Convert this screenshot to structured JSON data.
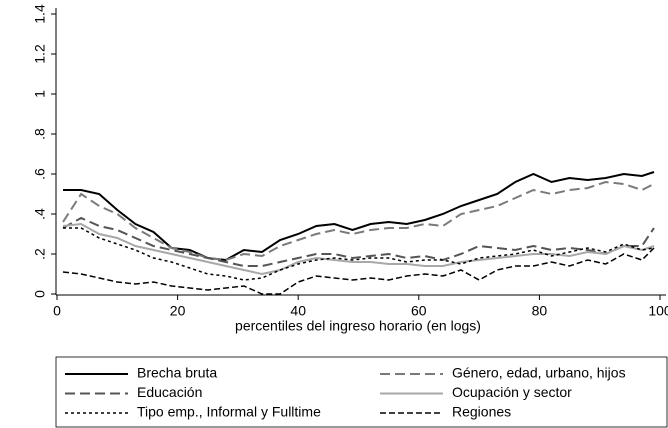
{
  "chart_data": {
    "type": "line",
    "xlabel": "percentiles del ingreso horario (en logs)",
    "x": [
      1,
      4,
      7,
      10,
      13,
      16,
      19,
      22,
      25,
      28,
      31,
      34,
      37,
      40,
      43,
      46,
      49,
      52,
      55,
      58,
      61,
      64,
      67,
      70,
      73,
      76,
      79,
      82,
      85,
      88,
      91,
      94,
      97,
      99
    ],
    "xlim": [
      0,
      100
    ],
    "xticks": [
      0,
      20,
      40,
      60,
      80,
      100
    ],
    "ylim": [
      0,
      1.4
    ],
    "yticks": [
      0,
      {
        "value": 0.2,
        "label": ".2"
      },
      {
        "value": 0.4,
        "label": ".4"
      },
      {
        "value": 0.6,
        "label": ".6"
      },
      {
        "value": 0.8,
        "label": ".8"
      },
      1,
      {
        "value": 1.2,
        "label": "1.2"
      },
      {
        "value": 1.4,
        "label": "1.4"
      }
    ],
    "series": [
      {
        "name": "Brecha bruta",
        "color": "#000000",
        "dash": "none",
        "width": 2,
        "values": [
          0.52,
          0.52,
          0.5,
          0.42,
          0.35,
          0.31,
          0.23,
          0.22,
          0.18,
          0.17,
          0.22,
          0.21,
          0.27,
          0.3,
          0.34,
          0.35,
          0.32,
          0.35,
          0.36,
          0.35,
          0.37,
          0.4,
          0.44,
          0.47,
          0.5,
          0.56,
          0.6,
          0.56,
          0.58,
          0.57,
          0.58,
          0.6,
          0.59,
          0.61
        ]
      },
      {
        "name": "Género, edad, urbano, hijos",
        "color": "#7a7a7a",
        "dash": "10 5",
        "width": 2,
        "values": [
          0.36,
          0.5,
          0.44,
          0.4,
          0.33,
          0.28,
          0.23,
          0.21,
          0.18,
          0.17,
          0.2,
          0.19,
          0.24,
          0.27,
          0.3,
          0.32,
          0.3,
          0.32,
          0.33,
          0.33,
          0.35,
          0.34,
          0.4,
          0.42,
          0.44,
          0.48,
          0.52,
          0.5,
          0.52,
          0.53,
          0.56,
          0.55,
          0.52,
          0.55
        ]
      },
      {
        "name": "Educación",
        "color": "#555555",
        "dash": "10 5",
        "width": 2,
        "values": [
          0.33,
          0.38,
          0.34,
          0.32,
          0.28,
          0.24,
          0.22,
          0.2,
          0.18,
          0.16,
          0.14,
          0.14,
          0.16,
          0.18,
          0.2,
          0.2,
          0.18,
          0.19,
          0.2,
          0.18,
          0.19,
          0.17,
          0.2,
          0.24,
          0.23,
          0.22,
          0.24,
          0.22,
          0.23,
          0.22,
          0.2,
          0.24,
          0.24,
          0.33
        ]
      },
      {
        "name": "Ocupación y sector",
        "color": "#a8a8a8",
        "dash": "none",
        "width": 2,
        "values": [
          0.34,
          0.35,
          0.3,
          0.28,
          0.24,
          0.22,
          0.2,
          0.18,
          0.16,
          0.14,
          0.12,
          0.1,
          0.12,
          0.16,
          0.18,
          0.17,
          0.16,
          0.16,
          0.15,
          0.15,
          0.14,
          0.14,
          0.16,
          0.17,
          0.18,
          0.19,
          0.2,
          0.2,
          0.19,
          0.21,
          0.2,
          0.24,
          0.22,
          0.24
        ]
      },
      {
        "name": "Tipo emp., Informal y Fulltime",
        "color": "#000000",
        "dash": "3 3",
        "width": 1.5,
        "values": [
          0.33,
          0.33,
          0.28,
          0.25,
          0.22,
          0.18,
          0.16,
          0.13,
          0.1,
          0.09,
          0.07,
          0.08,
          0.12,
          0.15,
          0.17,
          0.18,
          0.17,
          0.18,
          0.18,
          0.16,
          0.17,
          0.17,
          0.15,
          0.18,
          0.19,
          0.2,
          0.22,
          0.19,
          0.21,
          0.23,
          0.21,
          0.25,
          0.22,
          0.23
        ]
      },
      {
        "name": "Regiones",
        "color": "#000000",
        "dash": "6 3",
        "width": 1.5,
        "values": [
          0.11,
          0.1,
          0.08,
          0.06,
          0.05,
          0.06,
          0.04,
          0.03,
          0.02,
          0.03,
          0.04,
          0.0,
          0.0,
          0.06,
          0.09,
          0.08,
          0.07,
          0.08,
          0.07,
          0.09,
          0.1,
          0.09,
          0.12,
          0.07,
          0.12,
          0.14,
          0.14,
          0.16,
          0.14,
          0.17,
          0.15,
          0.2,
          0.17,
          0.23
        ]
      }
    ]
  }
}
